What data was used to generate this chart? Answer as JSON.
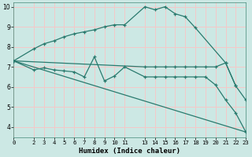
{
  "xlabel": "Humidex (Indice chaleur)",
  "bg_color": "#cce8e4",
  "grid_color": "#f5c8c8",
  "line_color": "#2a7a6e",
  "xlim": [
    0,
    23
  ],
  "ylim": [
    3.5,
    10.2
  ],
  "xticks": [
    0,
    2,
    3,
    4,
    5,
    6,
    7,
    8,
    9,
    10,
    11,
    13,
    14,
    15,
    16,
    17,
    18,
    19,
    20,
    21,
    22,
    23
  ],
  "yticks": [
    4,
    5,
    6,
    7,
    8,
    9,
    10
  ],
  "lines": [
    {
      "x": [
        0,
        2,
        3,
        4,
        5,
        6,
        7,
        8,
        9,
        10,
        11,
        13,
        14,
        15,
        16,
        17,
        18,
        21,
        22
      ],
      "y": [
        7.3,
        7.9,
        8.15,
        8.3,
        8.5,
        8.65,
        8.75,
        8.85,
        9.0,
        9.1,
        9.1,
        10.0,
        9.85,
        10.0,
        9.65,
        9.5,
        8.95,
        7.2,
        6.05
      ]
    },
    {
      "x": [
        0,
        13,
        14,
        15,
        16,
        17,
        18,
        19,
        20,
        21,
        22,
        23
      ],
      "y": [
        7.3,
        7.0,
        7.0,
        7.0,
        7.0,
        7.0,
        7.0,
        7.0,
        7.0,
        7.2,
        6.05,
        5.35
      ]
    },
    {
      "x": [
        0,
        2,
        3,
        4,
        5,
        6,
        7,
        8,
        9,
        10,
        11,
        13,
        14,
        15,
        16,
        17,
        18,
        19,
        20,
        21,
        22,
        23
      ],
      "y": [
        7.3,
        6.85,
        6.95,
        6.85,
        6.8,
        6.75,
        6.5,
        7.5,
        6.3,
        6.55,
        7.0,
        6.5,
        6.5,
        6.5,
        6.5,
        6.5,
        6.5,
        6.5,
        6.1,
        5.35,
        4.7,
        3.75
      ]
    },
    {
      "x": [
        0,
        23
      ],
      "y": [
        7.3,
        3.75
      ]
    }
  ]
}
